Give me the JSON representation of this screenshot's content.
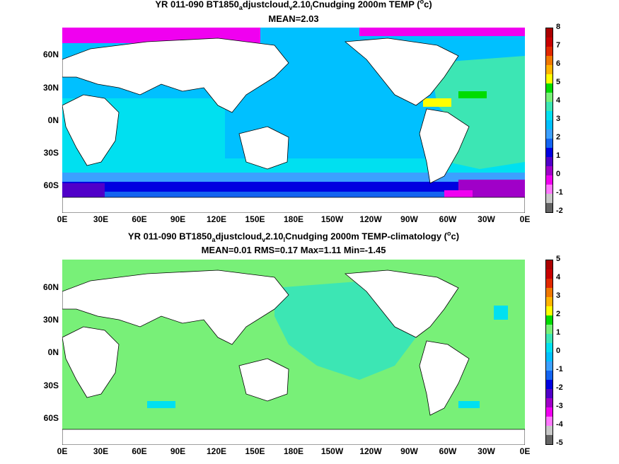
{
  "panels": [
    {
      "title_parts": [
        "YR 011-090 BT1850",
        "a",
        "djustcloud",
        "v",
        "2.10",
        "l",
        "Cnudging 2000m TEMP (",
        "o",
        "c)"
      ],
      "subtitle": "MEAN=2.03",
      "colorbar_labels": [
        "8",
        "7",
        "6",
        "5",
        "4",
        "3",
        "2",
        "1",
        "0",
        "-1",
        "-2"
      ],
      "colorbar_colors": [
        "#ab0000",
        "#c80000",
        "#e02800",
        "#f07800",
        "#ffb400",
        "#ffff00",
        "#00dc00",
        "#78f078",
        "#3ce6b4",
        "#00e0f0",
        "#00c0ff",
        "#3ca0ff",
        "#1464f0",
        "#0000e0",
        "#5000c8",
        "#a000c8",
        "#f000f0",
        "#ff78ff",
        "#c8c8c8",
        "#646464"
      ]
    },
    {
      "title_parts": [
        "YR 011-090 BT1850",
        "a",
        "djustcloud",
        "v",
        "2.10",
        "l",
        "Cnudging 2000m TEMP-climatology (",
        "o",
        "c)"
      ],
      "subtitle": "MEAN=0.01   RMS=0.17   Max=1.11   Min=-1.45",
      "colorbar_labels": [
        "5",
        "4",
        "3",
        "2",
        "1",
        "0",
        "-1",
        "-2",
        "-3",
        "-4",
        "-5"
      ],
      "colorbar_colors": [
        "#ab0000",
        "#c80000",
        "#e02800",
        "#f07800",
        "#ffb400",
        "#ffff00",
        "#00dc00",
        "#78f078",
        "#3ce6b4",
        "#00e0f0",
        "#00c0ff",
        "#3ca0ff",
        "#1464f0",
        "#0000e0",
        "#5000c8",
        "#a000c8",
        "#f000f0",
        "#ff78ff",
        "#c8c8c8",
        "#646464"
      ]
    }
  ],
  "lat_labels": [
    "60N",
    "30N",
    "0N",
    "30S",
    "60S"
  ],
  "lon_labels": [
    "0E",
    "30E",
    "60E",
    "90E",
    "120E",
    "150E",
    "180E",
    "150W",
    "120W",
    "90W",
    "60W",
    "30W",
    "0E"
  ]
}
